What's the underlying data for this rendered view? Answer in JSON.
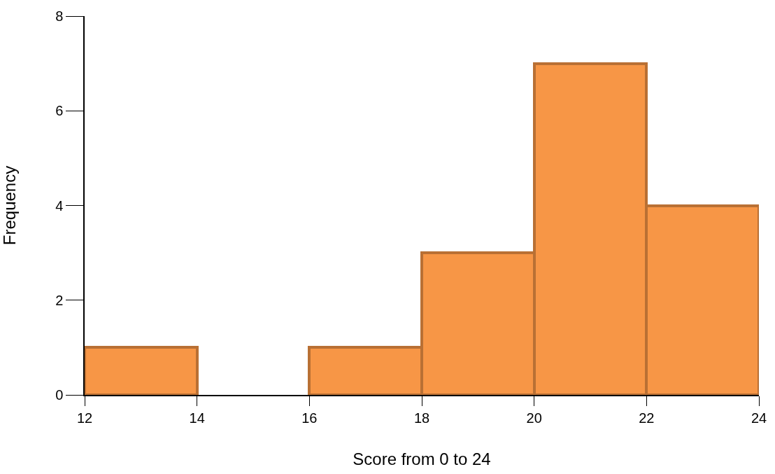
{
  "chart_data": {
    "type": "histogram",
    "xlabel": "Score from 0 to 24",
    "ylabel": "Frequency",
    "bins": [
      12,
      14,
      16,
      18,
      20,
      22,
      24
    ],
    "values": [
      1,
      0,
      1,
      3,
      7,
      4
    ],
    "color": "#f79646",
    "xlim": [
      12,
      24
    ],
    "xticks": [
      12,
      14,
      16,
      18,
      20,
      22,
      24
    ],
    "ylim": [
      0,
      8
    ],
    "yticks": [
      0,
      2,
      4,
      6,
      8
    ]
  }
}
